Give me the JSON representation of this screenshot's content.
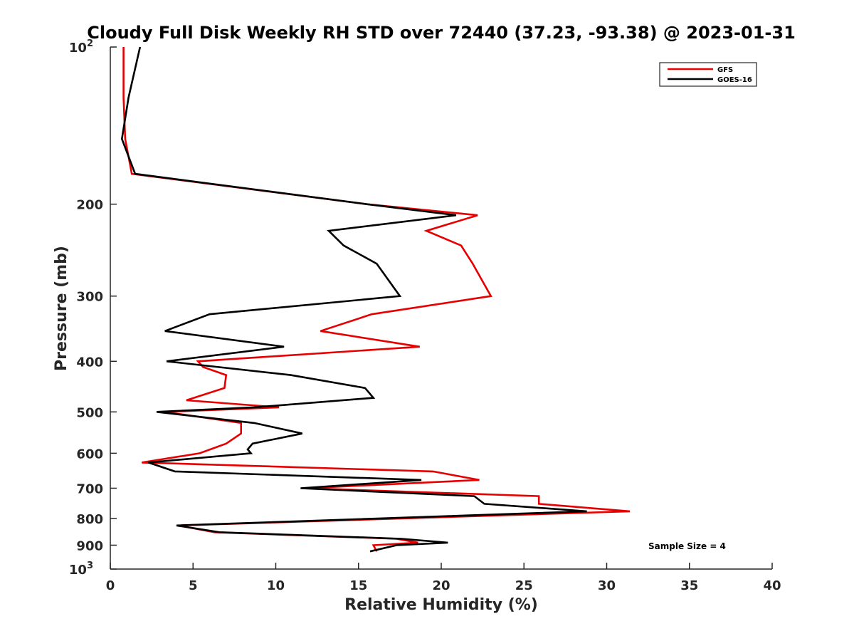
{
  "chart_data": {
    "type": "line",
    "title": "Cloudy Full Disk Weekly RH STD over 72440 (37.23, -93.38) @ 2023-01-31",
    "xlabel": "Relative Humidity (%)",
    "ylabel": "Pressure (mb)",
    "xlim": [
      0,
      40
    ],
    "ylim": [
      100,
      1000
    ],
    "yscale": "log",
    "y_reversed": true,
    "xticks": [
      0,
      5,
      10,
      15,
      20,
      25,
      30,
      35,
      40
    ],
    "yticks": [
      {
        "value": 100,
        "label": "10",
        "sup": "2"
      },
      {
        "value": 200,
        "label": "200",
        "sup": ""
      },
      {
        "value": 300,
        "label": "300",
        "sup": ""
      },
      {
        "value": 400,
        "label": "400",
        "sup": ""
      },
      {
        "value": 500,
        "label": "500",
        "sup": ""
      },
      {
        "value": 600,
        "label": "600",
        "sup": ""
      },
      {
        "value": 700,
        "label": "700",
        "sup": ""
      },
      {
        "value": 800,
        "label": "800",
        "sup": ""
      },
      {
        "value": 900,
        "label": "900",
        "sup": ""
      },
      {
        "value": 1000,
        "label": "10",
        "sup": "3"
      }
    ],
    "grid": false,
    "legend_position": "top-right",
    "series": [
      {
        "name": "GFS",
        "color": "#e60000",
        "points": [
          [
            0.8,
            100
          ],
          [
            0.8,
            125
          ],
          [
            0.9,
            150
          ],
          [
            1.3,
            175
          ],
          [
            15.5,
            200
          ],
          [
            22.2,
            210
          ],
          [
            19.1,
            225
          ],
          [
            21.2,
            240
          ],
          [
            21.9,
            260
          ],
          [
            23.0,
            300
          ],
          [
            15.8,
            325
          ],
          [
            12.7,
            350
          ],
          [
            18.7,
            375
          ],
          [
            5.3,
            400
          ],
          [
            5.6,
            410
          ],
          [
            7.0,
            425
          ],
          [
            6.9,
            450
          ],
          [
            4.6,
            475
          ],
          [
            10.2,
            490
          ],
          [
            3.3,
            500
          ],
          [
            7.9,
            525
          ],
          [
            7.9,
            550
          ],
          [
            7.0,
            575
          ],
          [
            5.4,
            600
          ],
          [
            1.9,
            625
          ],
          [
            19.5,
            650
          ],
          [
            22.3,
            675
          ],
          [
            11.8,
            700
          ],
          [
            25.9,
            725
          ],
          [
            25.9,
            750
          ],
          [
            31.4,
            775
          ],
          [
            4.1,
            825
          ],
          [
            6.3,
            850
          ],
          [
            17.3,
            875
          ],
          [
            18.6,
            890
          ],
          [
            15.9,
            900
          ],
          [
            16.1,
            925
          ]
        ]
      },
      {
        "name": "GOES-16",
        "color": "#000000",
        "points": [
          [
            1.8,
            100
          ],
          [
            1.1,
            125
          ],
          [
            0.7,
            150
          ],
          [
            1.5,
            175
          ],
          [
            15.5,
            200
          ],
          [
            20.9,
            210
          ],
          [
            13.2,
            225
          ],
          [
            14.1,
            240
          ],
          [
            16.1,
            260
          ],
          [
            17.5,
            300
          ],
          [
            6.0,
            325
          ],
          [
            3.3,
            350
          ],
          [
            10.5,
            375
          ],
          [
            3.4,
            400
          ],
          [
            10.9,
            425
          ],
          [
            15.4,
            450
          ],
          [
            15.9,
            470
          ],
          [
            8.7,
            490
          ],
          [
            2.8,
            500
          ],
          [
            8.7,
            525
          ],
          [
            11.6,
            550
          ],
          [
            8.6,
            575
          ],
          [
            8.3,
            590
          ],
          [
            8.5,
            600
          ],
          [
            2.3,
            625
          ],
          [
            3.9,
            650
          ],
          [
            18.8,
            675
          ],
          [
            11.5,
            700
          ],
          [
            22.0,
            725
          ],
          [
            22.6,
            750
          ],
          [
            28.8,
            775
          ],
          [
            4.0,
            825
          ],
          [
            6.6,
            850
          ],
          [
            17.6,
            875
          ],
          [
            20.4,
            890
          ],
          [
            17.3,
            900
          ],
          [
            15.7,
            925
          ]
        ]
      }
    ],
    "annotation": "Sample Size = 4"
  }
}
